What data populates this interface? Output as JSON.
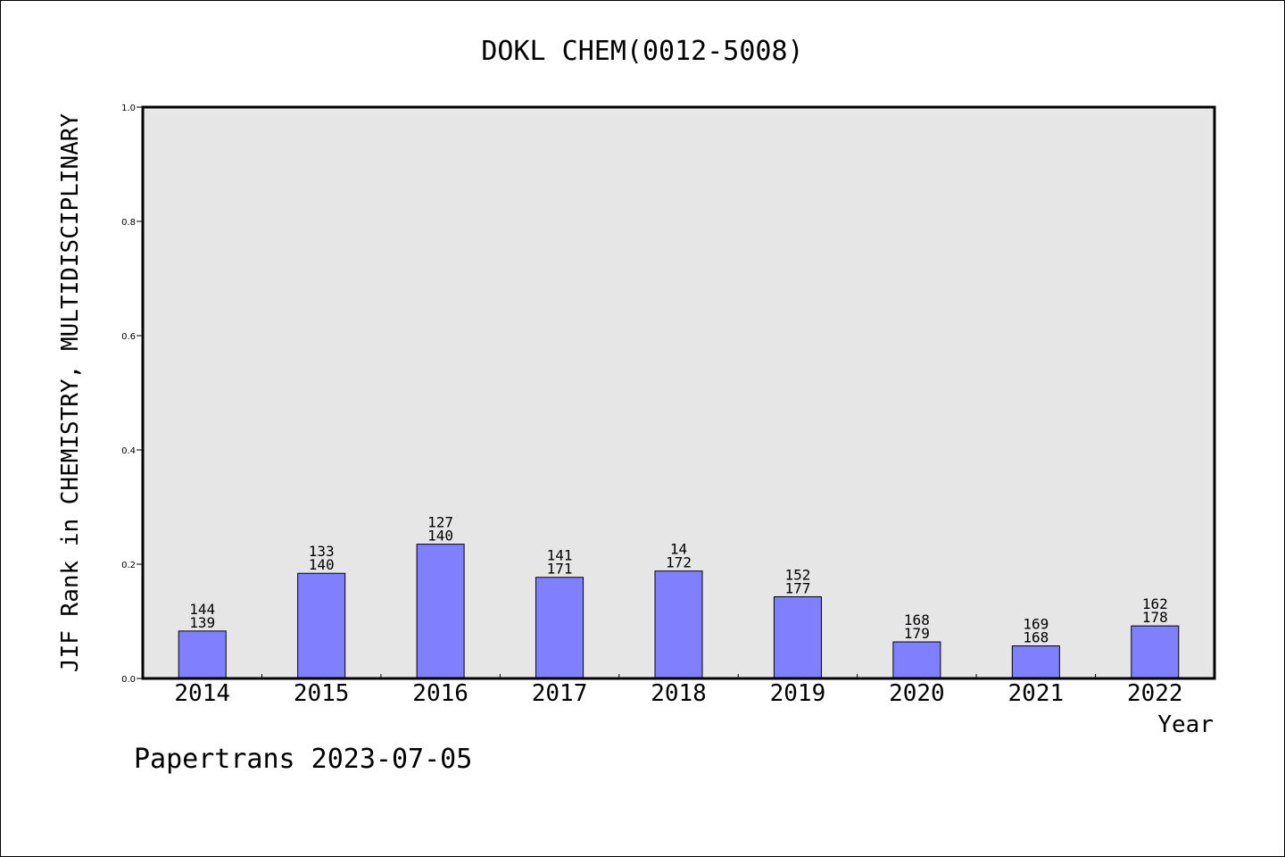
{
  "chart_data": {
    "type": "bar",
    "title": "DOKL CHEM(0012-5008)",
    "xlabel": "Year",
    "ylabel": "JIF Rank in CHEMISTRY, MULTIDISCIPLINARY",
    "ylim": [
      0,
      1.0
    ],
    "yticks": [
      "0.0",
      "0.2",
      "0.4",
      "0.6",
      "0.8",
      "1.0"
    ],
    "categories": [
      "2014",
      "2015",
      "2016",
      "2017",
      "2018",
      "2019",
      "2020",
      "2021",
      "2022"
    ],
    "values": [
      0.083,
      0.184,
      0.235,
      0.177,
      0.188,
      0.143,
      0.064,
      0.057,
      0.092
    ],
    "labels_top": [
      "144",
      "133",
      "127",
      "141",
      "14",
      "152",
      "168",
      "169",
      "162"
    ],
    "labels_bottom": [
      "139",
      "140",
      "140",
      "171",
      "172",
      "177",
      "179",
      "168",
      "178"
    ],
    "grid": false,
    "colors": {
      "bar": "#8080ff",
      "plot_background": "#e6e6e6",
      "axis": "#000000"
    }
  },
  "footer": {
    "text": "Papertrans 2023-07-05"
  }
}
